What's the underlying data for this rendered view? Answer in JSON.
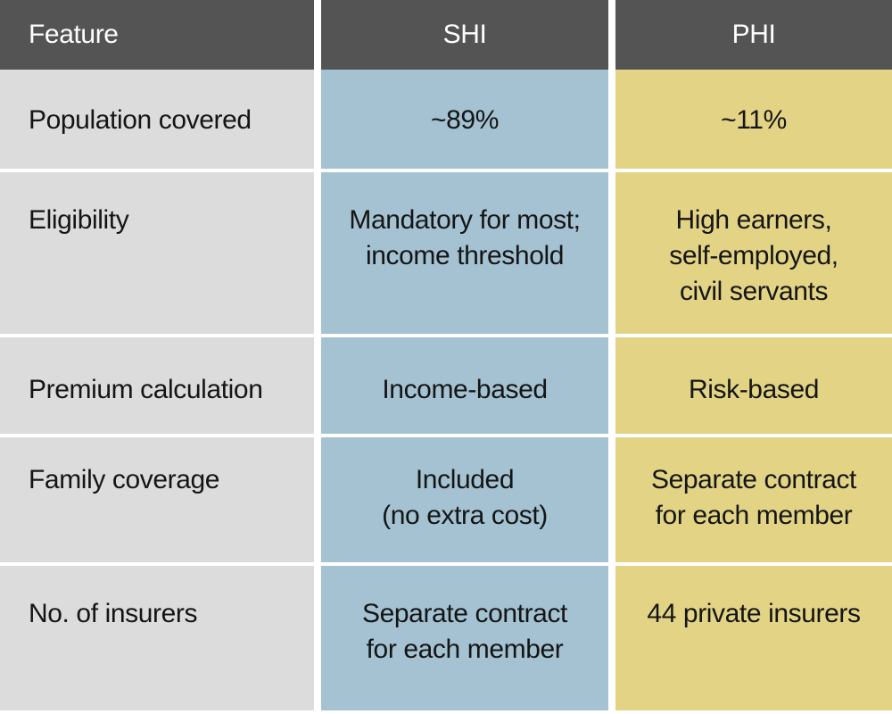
{
  "title": "SHI vs PHI comparison table",
  "colors": {
    "header_bg": "#545454",
    "header_text": "#ffffff",
    "feature_bg": "#dcdcdc",
    "shi_bg": "#a4c2d2",
    "phi_bg": "#e3d485",
    "body_text": "#151515"
  },
  "table": {
    "columns": [
      {
        "key": "feature",
        "label": "Feature"
      },
      {
        "key": "shi",
        "label": "SHI"
      },
      {
        "key": "phi",
        "label": "PHI"
      }
    ],
    "rows": [
      {
        "feature": "Population covered",
        "shi": [
          "~89%"
        ],
        "phi": [
          "~11%"
        ]
      },
      {
        "feature": "Eligibility",
        "shi": [
          "Mandatory for most;",
          "income threshold"
        ],
        "phi": [
          "High earners,",
          "self-employed,",
          "civil servants"
        ]
      },
      {
        "feature": "Premium calculation",
        "shi": [
          "Income-based"
        ],
        "phi": [
          "Risk-based"
        ]
      },
      {
        "feature": "Family coverage",
        "shi": [
          "Included",
          "(no extra cost)"
        ],
        "phi": [
          "Separate contract",
          "for each member"
        ]
      },
      {
        "feature": "No. of insurers",
        "shi": [
          "Separate contract",
          "for each member"
        ],
        "phi": [
          "44 private insurers"
        ]
      }
    ]
  },
  "chart_data": {
    "type": "table",
    "columns": [
      "Feature",
      "SHI",
      "PHI"
    ],
    "rows": [
      [
        "Population covered",
        "~89%",
        "~11%"
      ],
      [
        "Eligibility",
        "Mandatory for most; income threshold",
        "High earners, self-employed, civil servants"
      ],
      [
        "Premium calculation",
        "Income-based",
        "Risk-based"
      ],
      [
        "Family coverage",
        "Included (no extra cost)",
        "Separate contract for each member"
      ],
      [
        "No. of insurers",
        "Separate contract for each member",
        "44 private insurers"
      ]
    ]
  }
}
